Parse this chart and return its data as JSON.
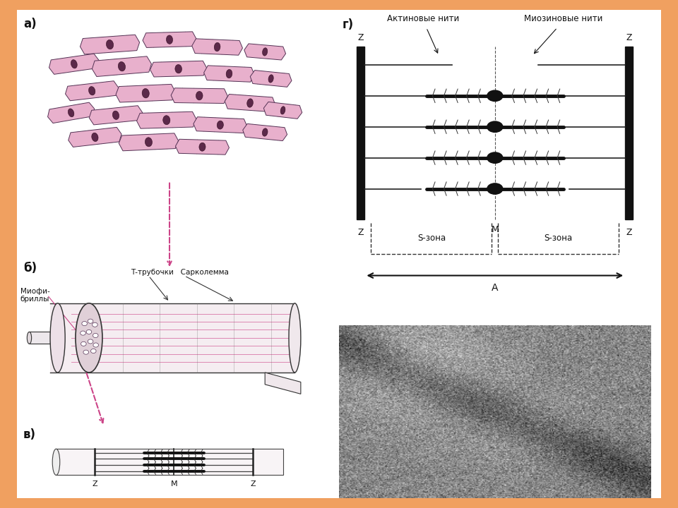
{
  "bg_color": "#f0a060",
  "panel_bg": "#ffffff",
  "pink": "#cc4488",
  "pink_light": "#e8b0cc",
  "pink_fill": "#dda0bb",
  "dark": "#111111",
  "gray": "#888888",
  "panel_a_label": "а)",
  "panel_b_label": "б)",
  "panel_v_label": "в)",
  "panel_g_label": "г)",
  "label_T": "Т-трубочки",
  "label_S": "Сарколемма",
  "label_myo": "Миофи-\nбриллы",
  "label_actin": "Актиновые нити",
  "label_myosin": "Миозиновые нити",
  "label_szone": "S-зона",
  "label_A": "А",
  "label_M": "M",
  "label_Z": "Z",
  "cardiac_cells": [
    [
      0.3,
      0.88,
      0.2,
      0.065,
      5
    ],
    [
      0.5,
      0.9,
      0.18,
      0.06,
      2
    ],
    [
      0.66,
      0.87,
      0.17,
      0.06,
      -3
    ],
    [
      0.82,
      0.85,
      0.14,
      0.055,
      -6
    ],
    [
      0.18,
      0.8,
      0.17,
      0.06,
      10
    ],
    [
      0.34,
      0.79,
      0.2,
      0.065,
      6
    ],
    [
      0.53,
      0.78,
      0.19,
      0.06,
      2
    ],
    [
      0.7,
      0.76,
      0.17,
      0.06,
      -3
    ],
    [
      0.84,
      0.74,
      0.14,
      0.055,
      -7
    ],
    [
      0.24,
      0.69,
      0.18,
      0.06,
      8
    ],
    [
      0.42,
      0.68,
      0.2,
      0.065,
      3
    ],
    [
      0.6,
      0.67,
      0.19,
      0.06,
      -1
    ],
    [
      0.77,
      0.64,
      0.17,
      0.06,
      -5
    ],
    [
      0.88,
      0.61,
      0.13,
      0.055,
      -8
    ],
    [
      0.17,
      0.6,
      0.16,
      0.058,
      12
    ],
    [
      0.32,
      0.59,
      0.18,
      0.06,
      7
    ],
    [
      0.49,
      0.57,
      0.2,
      0.063,
      2
    ],
    [
      0.67,
      0.55,
      0.18,
      0.058,
      -3
    ],
    [
      0.82,
      0.52,
      0.15,
      0.055,
      -7
    ],
    [
      0.25,
      0.5,
      0.18,
      0.06,
      8
    ],
    [
      0.43,
      0.48,
      0.2,
      0.063,
      3
    ],
    [
      0.61,
      0.46,
      0.18,
      0.058,
      -2
    ]
  ]
}
